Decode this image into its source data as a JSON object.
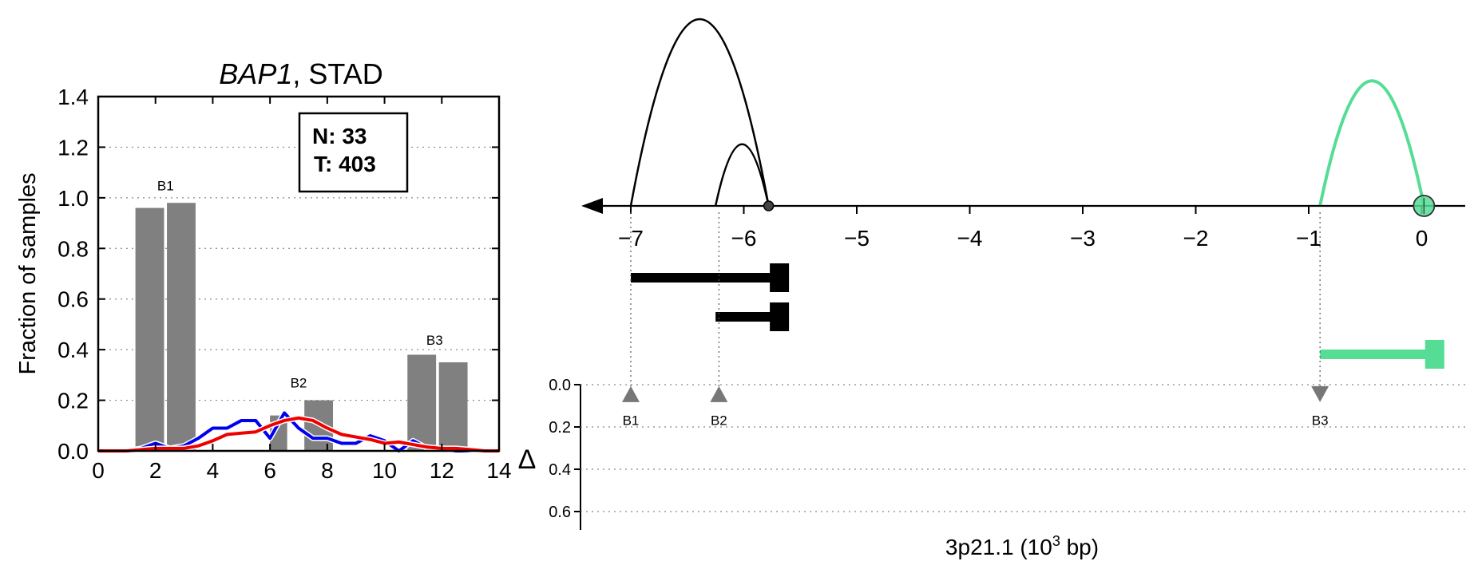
{
  "chart_data": [
    {
      "type": "bar",
      "title": "BAP1, STAD",
      "title_gene": "BAP1",
      "title_rest": ", STAD",
      "xlabel": "",
      "ylabel": "Fraction of samples",
      "xlim": [
        0,
        14
      ],
      "ylim": [
        0,
        1.4
      ],
      "xticks": [
        0,
        2,
        4,
        6,
        8,
        10,
        12,
        14
      ],
      "yticks": [
        0.0,
        0.2,
        0.4,
        0.6,
        0.8,
        1.0,
        1.2,
        1.4
      ],
      "xtick_labels": [
        "0",
        "2",
        "4",
        "6",
        "8",
        "10",
        "12",
        "14"
      ],
      "ytick_labels": [
        "0.0",
        "0.2",
        "0.4",
        "0.6",
        "0.8",
        "1.0",
        "1.2",
        "1.4"
      ],
      "grid": "horizontal dotted",
      "annotation_box": {
        "line1": "N: 33",
        "line2": "T: 403"
      },
      "bars": [
        {
          "x0": 1.3,
          "x1": 2.3,
          "value": 0.96
        },
        {
          "x0": 2.4,
          "x1": 3.4,
          "value": 0.98
        },
        {
          "x0": 6.0,
          "x1": 6.6,
          "value": 0.14
        },
        {
          "x0": 7.2,
          "x1": 8.2,
          "value": 0.2
        },
        {
          "x0": 10.8,
          "x1": 11.8,
          "value": 0.38
        },
        {
          "x0": 11.9,
          "x1": 12.9,
          "value": 0.35
        }
      ],
      "bar_labels": [
        {
          "text": "B1",
          "x": 2.35,
          "y": 1.03
        },
        {
          "text": "B2",
          "x": 7.0,
          "y": 0.25
        },
        {
          "text": "B3",
          "x": 11.75,
          "y": 0.42
        }
      ],
      "series": [
        {
          "color": "#0000ee",
          "x": [
            0.0,
            0.5,
            1.0,
            1.5,
            2.0,
            2.5,
            3.0,
            3.5,
            4.0,
            4.5,
            5.0,
            5.5,
            6.0,
            6.5,
            7.0,
            7.5,
            8.0,
            8.5,
            9.0,
            9.5,
            10.0,
            10.5,
            11.0,
            11.5,
            12.0,
            12.5,
            13.0,
            13.5,
            14.0
          ],
          "values": [
            0.0,
            0.0,
            0.0,
            0.01,
            0.03,
            0.01,
            0.02,
            0.05,
            0.09,
            0.09,
            0.12,
            0.12,
            0.05,
            0.15,
            0.09,
            0.05,
            0.05,
            0.03,
            0.03,
            0.06,
            0.04,
            0.0,
            0.04,
            0.01,
            0.01,
            0.0,
            0.0,
            0.0,
            0.0
          ]
        },
        {
          "color": "#ee0000",
          "x": [
            0.0,
            0.5,
            1.0,
            1.5,
            2.0,
            2.5,
            3.0,
            3.5,
            4.0,
            4.5,
            5.0,
            5.5,
            6.0,
            6.5,
            7.0,
            7.5,
            8.0,
            8.5,
            9.0,
            9.5,
            10.0,
            10.5,
            11.0,
            11.5,
            12.0,
            12.5,
            13.0,
            13.5,
            14.0
          ],
          "values": [
            0.0,
            0.0,
            0.0,
            0.005,
            0.01,
            0.01,
            0.01,
            0.02,
            0.04,
            0.065,
            0.07,
            0.075,
            0.1,
            0.12,
            0.13,
            0.12,
            0.09,
            0.065,
            0.055,
            0.045,
            0.03,
            0.035,
            0.025,
            0.015,
            0.01,
            0.01,
            0.005,
            0.0,
            0.0
          ]
        }
      ]
    },
    {
      "type": "diagram",
      "xlabel_main": "3p21.1 (10",
      "xlabel_sup": "3",
      "xlabel_tail": " bp)",
      "xlim": [
        -7.4,
        0.45
      ],
      "xticks": [
        -7,
        -6,
        -5,
        -4,
        -3,
        -2,
        -1,
        0
      ],
      "xtick_labels": [
        "−7",
        "−6",
        "−5",
        "−4",
        "−3",
        "−2",
        "−1",
        "0"
      ],
      "arcs": [
        {
          "from": -7.0,
          "to": -5.78,
          "height": 1.0,
          "color": "#000000"
        },
        {
          "from": -6.25,
          "to": -5.78,
          "height": 0.33,
          "color": "#000000"
        },
        {
          "from": -0.9,
          "to": 0.02,
          "height": 0.67,
          "color": "#55dd95"
        }
      ],
      "anchor_points": [
        {
          "x": -5.78,
          "color": "#444444",
          "type": "dot"
        },
        {
          "x": 0.02,
          "color": "#55dd95",
          "type": "circle"
        }
      ],
      "gene_bars": [
        {
          "from": -7.0,
          "to": -5.6,
          "row": 0,
          "color": "#000000"
        },
        {
          "from": -6.25,
          "to": -5.6,
          "row": 1,
          "color": "#000000"
        },
        {
          "from": -0.9,
          "to": 0.2,
          "row": 2,
          "color": "#55dd95"
        }
      ],
      "delta_axis": {
        "label": "Δ",
        "ylim": [
          0.0,
          0.7
        ],
        "yticks": [
          0.0,
          0.2,
          0.4,
          0.6
        ],
        "ytick_labels": [
          "0.0",
          "0.2",
          "0.4",
          "0.6"
        ],
        "grid": "horizontal dotted"
      },
      "markers": [
        {
          "label": "B1",
          "x": -7.0,
          "direction": "up"
        },
        {
          "label": "B2",
          "x": -6.22,
          "direction": "up"
        },
        {
          "label": "B3",
          "x": -0.9,
          "direction": "down"
        }
      ]
    }
  ]
}
